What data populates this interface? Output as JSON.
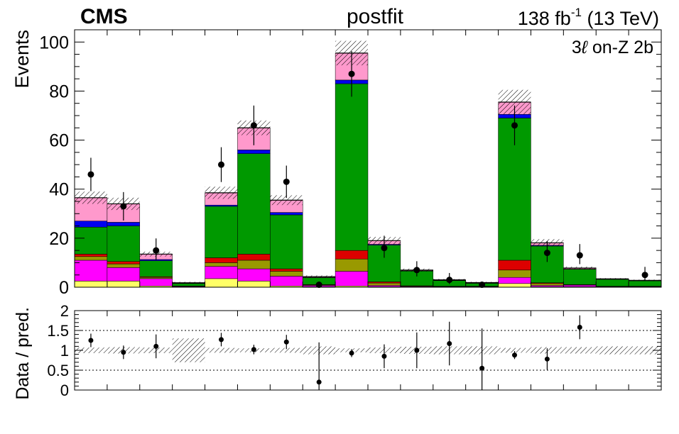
{
  "header": {
    "experiment": "CMS",
    "fit_label": "postfit",
    "lumi": "138 fb",
    "lumi_sup": "-1",
    "energy": " (13 TeV)",
    "region_prefix": "3",
    "region_ell": "ℓ",
    "region_suffix": " on-Z 2b"
  },
  "colors": {
    "green": "#009900",
    "blue": "#0000ee",
    "pink": "#ff99cc",
    "red": "#dd0000",
    "olive": "#999900",
    "magenta": "#ff00ff",
    "yellow": "#ffff66"
  },
  "chart_data": [
    {
      "type": "stacked-histogram",
      "panel": "main",
      "ylabel": "Events",
      "ylim": [
        0,
        105
      ],
      "yticks": [
        "0",
        "20",
        "40",
        "60",
        "80",
        "100"
      ],
      "bins": 18,
      "stack_order_bottom_to_top": [
        "yellow",
        "magenta",
        "olive",
        "red",
        "green",
        "blue",
        "pink"
      ],
      "stacks": [
        {
          "yellow": 2.5,
          "magenta": 8.5,
          "olive": 1.5,
          "red": 1.0,
          "green": 11.0,
          "blue": 2.5,
          "pink": 9.5
        },
        {
          "yellow": 2.5,
          "magenta": 5.5,
          "olive": 1.5,
          "red": 1.0,
          "green": 14.5,
          "blue": 1.5,
          "pink": 7.5
        },
        {
          "yellow": 0.5,
          "magenta": 3.0,
          "olive": 0.5,
          "red": 0.3,
          "green": 6.5,
          "blue": 0.5,
          "pink": 2.2
        },
        {
          "yellow": 0.1,
          "magenta": 0.2,
          "olive": 0.1,
          "red": 0.1,
          "green": 1.0,
          "blue": 0.1,
          "pink": 0.2
        },
        {
          "yellow": 3.5,
          "magenta": 5.0,
          "olive": 1.5,
          "red": 2.0,
          "green": 21.0,
          "blue": 0.5,
          "pink": 5.0
        },
        {
          "yellow": 2.5,
          "magenta": 5.0,
          "olive": 3.5,
          "red": 2.5,
          "green": 41.0,
          "blue": 1.5,
          "pink": 9.0
        },
        {
          "yellow": 0.5,
          "magenta": 4.0,
          "olive": 2.0,
          "red": 1.0,
          "green": 22.0,
          "blue": 1.0,
          "pink": 5.0
        },
        {
          "yellow": 0.2,
          "magenta": 0.5,
          "olive": 0.2,
          "red": 0.2,
          "green": 2.8,
          "blue": 0.1,
          "pink": 0.3
        },
        {
          "yellow": 0.5,
          "magenta": 6.0,
          "olive": 5.0,
          "red": 3.5,
          "green": 68.0,
          "blue": 1.5,
          "pink": 11.0
        },
        {
          "yellow": 0.2,
          "magenta": 0.5,
          "olive": 1.0,
          "red": 0.5,
          "green": 15.0,
          "blue": 0.3,
          "pink": 1.5
        },
        {
          "yellow": 0.1,
          "magenta": 0.2,
          "olive": 0.2,
          "red": 0.1,
          "green": 6.0,
          "blue": 0.1,
          "pink": 0.3
        },
        {
          "yellow": 0.1,
          "magenta": 0.1,
          "olive": 0.1,
          "red": 0.1,
          "green": 2.3,
          "blue": 0.1,
          "pink": 0.2
        },
        {
          "yellow": 0.1,
          "magenta": 0.1,
          "olive": 0.1,
          "red": 0.1,
          "green": 1.2,
          "blue": 0.1,
          "pink": 0.2
        },
        {
          "yellow": 1.5,
          "magenta": 2.5,
          "olive": 3.0,
          "red": 4.0,
          "green": 58.0,
          "blue": 1.5,
          "pink": 5.0
        },
        {
          "yellow": 0.2,
          "magenta": 0.5,
          "olive": 0.8,
          "red": 0.3,
          "green": 15.0,
          "blue": 0.3,
          "pink": 1.0
        },
        {
          "yellow": 0.2,
          "magenta": 0.6,
          "olive": 0.2,
          "red": 0.1,
          "green": 6.2,
          "blue": 0.1,
          "pink": 0.4
        },
        {
          "yellow": 0.1,
          "magenta": 0.1,
          "olive": 0.1,
          "red": 0.1,
          "green": 2.8,
          "blue": 0.1,
          "pink": 0.1
        },
        {
          "yellow": 0.1,
          "magenta": 0.1,
          "olive": 0.1,
          "red": 0.1,
          "green": 2.2,
          "blue": 0.1,
          "pink": 0.1
        }
      ],
      "uncertainty": [
        2.5,
        2.5,
        1.0,
        0.4,
        2.5,
        3.0,
        2.0,
        0.5,
        5.0,
        1.5,
        0.6,
        0.4,
        0.3,
        5.0,
        1.5,
        0.6,
        0.3,
        0.3
      ],
      "data": [
        46,
        33,
        15,
        null,
        50,
        66,
        43,
        1,
        87,
        16,
        7,
        3,
        1,
        66,
        14,
        13,
        null,
        5
      ],
      "data_err": [
        [
          6.8,
          6.8
        ],
        [
          5.8,
          5.8
        ],
        [
          3.9,
          4.9
        ],
        null,
        [
          7.1,
          7.1
        ],
        [
          8.1,
          8.1
        ],
        [
          6.6,
          6.6
        ],
        [
          1.0,
          1.3
        ],
        [
          9.3,
          9.3
        ],
        [
          4.0,
          5.0
        ],
        [
          2.6,
          3.6
        ],
        [
          1.7,
          2.8
        ],
        [
          1.0,
          1.3
        ],
        [
          8.1,
          8.1
        ],
        [
          3.7,
          4.8
        ],
        [
          3.6,
          4.6
        ],
        null,
        [
          2.2,
          3.3
        ]
      ]
    },
    {
      "type": "ratio",
      "panel": "ratio",
      "ylabel": "Data / pred.",
      "ylim": [
        0,
        2
      ],
      "yticks": [
        "0",
        "0.5",
        "1",
        "1.5",
        "2"
      ],
      "reference_lines": [
        0.5,
        1.5
      ],
      "uncertainty": [
        0.07,
        0.08,
        0.07,
        0.3,
        0.06,
        0.05,
        0.06,
        0.1,
        0.05,
        0.07,
        0.09,
        0.1,
        0.1,
        0.06,
        0.08,
        0.08,
        0.1,
        0.1
      ],
      "ratio": [
        1.25,
        0.95,
        1.1,
        null,
        1.27,
        1.02,
        1.21,
        0.2,
        0.93,
        0.85,
        1.0,
        1.17,
        0.55,
        0.88,
        0.78,
        1.58,
        null,
        null
      ],
      "ratio_err": [
        0.17,
        0.17,
        0.3,
        null,
        0.17,
        0.12,
        0.18,
        1.0,
        0.1,
        0.3,
        0.45,
        0.55,
        1.0,
        0.1,
        0.27,
        0.3,
        null,
        null
      ]
    }
  ]
}
